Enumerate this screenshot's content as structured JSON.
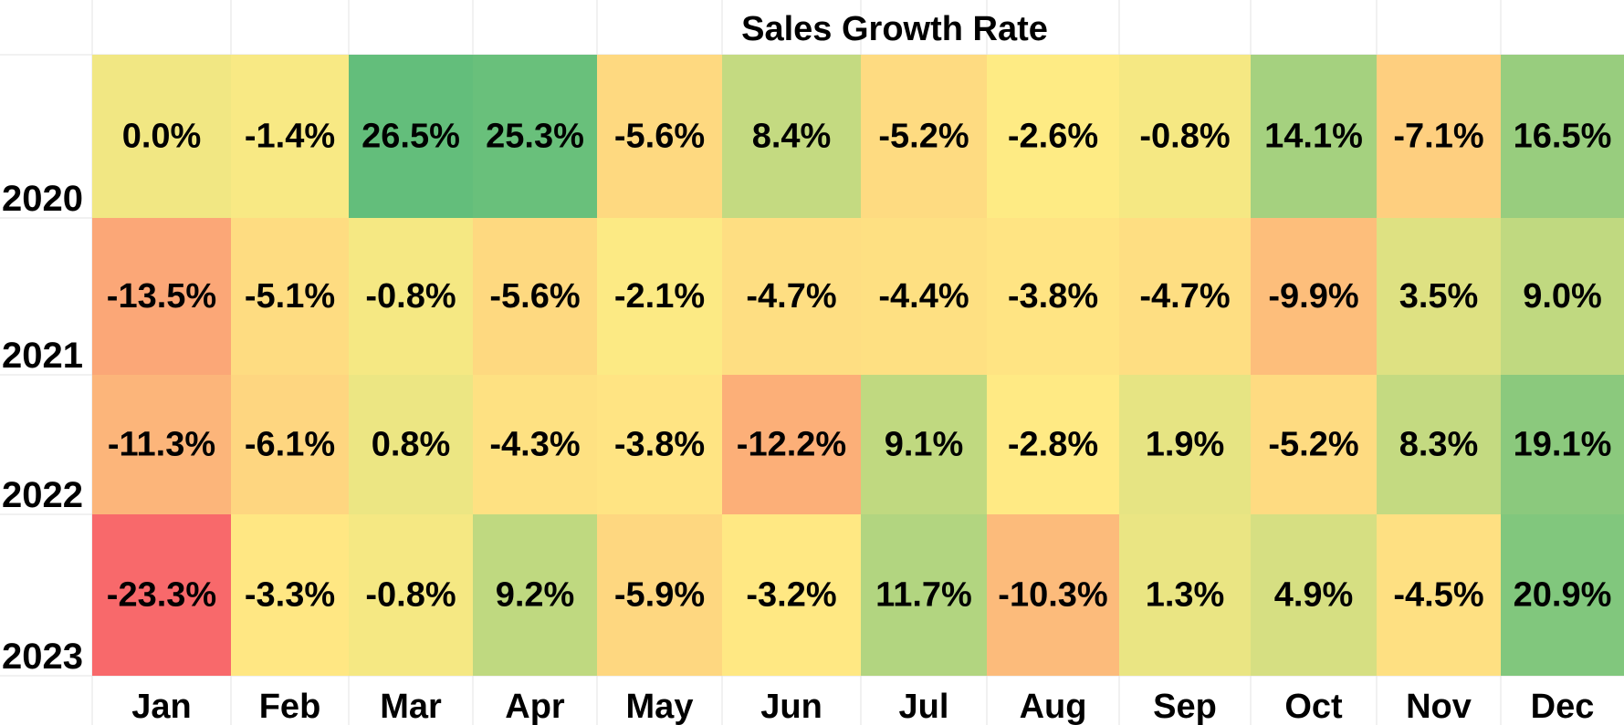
{
  "chart_data": {
    "type": "heatmap",
    "title": "Sales Growth Rate",
    "x_categories": [
      "Jan",
      "Feb",
      "Mar",
      "Apr",
      "May",
      "Jun",
      "Jul",
      "Aug",
      "Sep",
      "Oct",
      "Nov",
      "Dec"
    ],
    "y_categories": [
      "2020",
      "2021",
      "2022",
      "2023"
    ],
    "unit": "%",
    "values": [
      [
        0.0,
        -1.4,
        26.5,
        25.3,
        -5.6,
        8.4,
        -5.2,
        -2.6,
        -0.8,
        14.1,
        -7.1,
        16.5
      ],
      [
        -13.5,
        -5.1,
        -0.8,
        -5.6,
        -2.1,
        -4.7,
        -4.4,
        -3.8,
        -4.7,
        -9.9,
        3.5,
        9.0
      ],
      [
        -11.3,
        -6.1,
        0.8,
        -4.3,
        -3.8,
        -12.2,
        9.1,
        -2.8,
        1.9,
        -5.2,
        8.3,
        19.1
      ],
      [
        -23.3,
        -3.3,
        -0.8,
        9.2,
        -5.9,
        -3.2,
        11.7,
        -10.3,
        1.3,
        4.9,
        -4.5,
        20.9
      ]
    ],
    "color_scale": {
      "low": "#f8696b",
      "mid": "#ffeb84",
      "high": "#63be7b"
    },
    "legend": "none",
    "grid": false
  }
}
